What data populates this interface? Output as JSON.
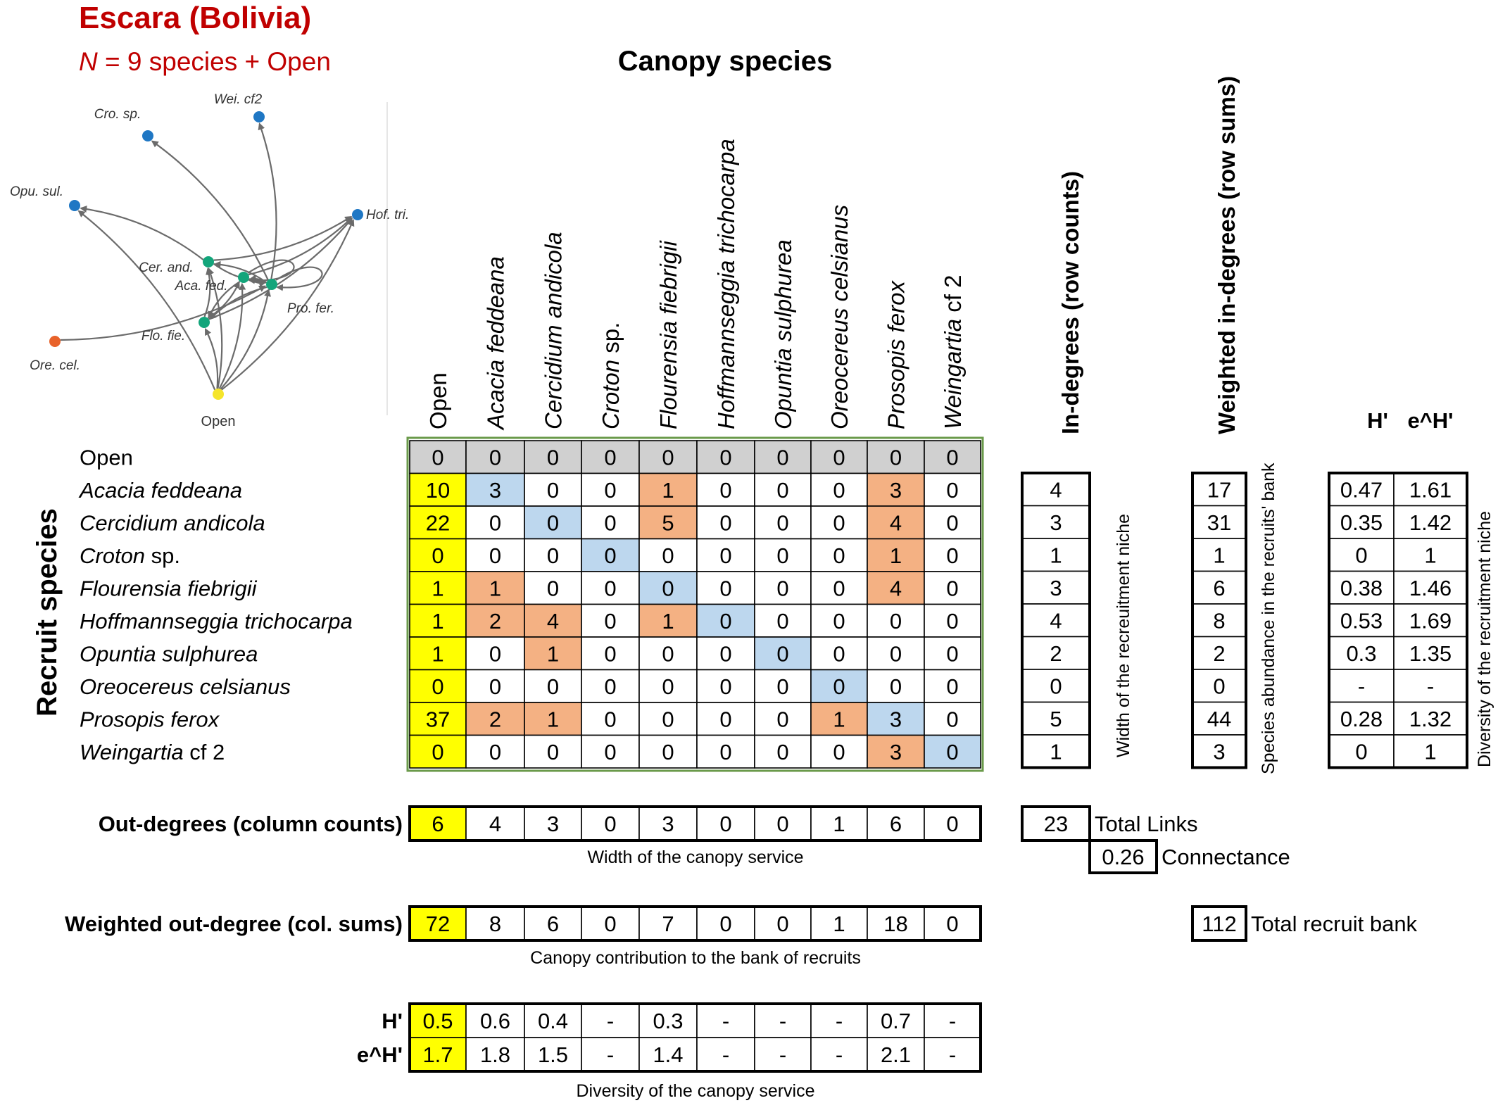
{
  "header": {
    "site_title": "Escara (Bolivia)",
    "n_symbol": "N",
    "n_text": " = 9 species + Open",
    "canopy_title": "Canopy species",
    "recruit_title": "Recruit species",
    "title_color": "#c00000"
  },
  "network": {
    "nodes": [
      {
        "id": "cro",
        "label": "Cro. sp.",
        "color": "#1f77c4"
      },
      {
        "id": "wei",
        "label": "Wei. cf2",
        "color": "#1f77c4"
      },
      {
        "id": "opu",
        "label": "Opu. sul.",
        "color": "#1f77c4"
      },
      {
        "id": "hof",
        "label": "Hof. tri.",
        "color": "#1f77c4"
      },
      {
        "id": "cer",
        "label": "Cer. and.",
        "color": "#13a57b"
      },
      {
        "id": "aca",
        "label": "Aca. fed.",
        "color": "#13a57b"
      },
      {
        "id": "pro",
        "label": "Pro. fer.",
        "color": "#13a57b"
      },
      {
        "id": "flo",
        "label": "Flo. fie.",
        "color": "#13a57b"
      },
      {
        "id": "ore",
        "label": "Ore. cel.",
        "color": "#e8622a"
      },
      {
        "id": "open",
        "label": "Open",
        "color": "#f5e52b"
      }
    ],
    "edges": [
      {
        "from": "open",
        "to": "aca"
      },
      {
        "from": "open",
        "to": "cer"
      },
      {
        "from": "open",
        "to": "flo"
      },
      {
        "from": "open",
        "to": "hof"
      },
      {
        "from": "open",
        "to": "opu"
      },
      {
        "from": "open",
        "to": "pro"
      },
      {
        "from": "aca",
        "to": "aca"
      },
      {
        "from": "aca",
        "to": "flo"
      },
      {
        "from": "aca",
        "to": "hof"
      },
      {
        "from": "aca",
        "to": "pro"
      },
      {
        "from": "cer",
        "to": "hof"
      },
      {
        "from": "cer",
        "to": "opu"
      },
      {
        "from": "cer",
        "to": "pro"
      },
      {
        "from": "flo",
        "to": "aca"
      },
      {
        "from": "flo",
        "to": "cer"
      },
      {
        "from": "flo",
        "to": "hof"
      },
      {
        "from": "pro",
        "to": "aca"
      },
      {
        "from": "pro",
        "to": "cer"
      },
      {
        "from": "pro",
        "to": "cro"
      },
      {
        "from": "pro",
        "to": "flo"
      },
      {
        "from": "pro",
        "to": "pro"
      },
      {
        "from": "pro",
        "to": "wei"
      },
      {
        "from": "ore",
        "to": "pro"
      }
    ]
  },
  "matrix": {
    "columns": [
      {
        "name": "Open",
        "italic": false
      },
      {
        "name": "Acacia feddeana",
        "italic": true
      },
      {
        "name": "Cercidium andicola",
        "italic": true
      },
      {
        "name": "Croton",
        "suffix": " sp.",
        "italic": true
      },
      {
        "name": "Flourensia fiebrigii",
        "italic": true
      },
      {
        "name": "Hoffmannseggia trichocarpa",
        "italic": true
      },
      {
        "name": "Opuntia sulphurea",
        "italic": true
      },
      {
        "name": "Oreocereus celsianus",
        "italic": true
      },
      {
        "name": "Prosopis ferox",
        "italic": true
      },
      {
        "name": "Weingartia",
        "suffix": " cf 2",
        "italic": true
      }
    ],
    "rows": [
      {
        "name": "Open",
        "italic": false,
        "values": [
          0,
          0,
          0,
          0,
          0,
          0,
          0,
          0,
          0,
          0
        ],
        "in_degree": null,
        "weighted_in_degree": null,
        "h": null,
        "eh": null
      },
      {
        "name": "Acacia feddeana",
        "italic": true,
        "values": [
          10,
          3,
          0,
          0,
          1,
          0,
          0,
          0,
          3,
          0
        ],
        "in_degree": 4,
        "weighted_in_degree": 17,
        "h": "0.47",
        "eh": "1.61"
      },
      {
        "name": "Cercidium andicola",
        "italic": true,
        "values": [
          22,
          0,
          0,
          0,
          5,
          0,
          0,
          0,
          4,
          0
        ],
        "in_degree": 3,
        "weighted_in_degree": 31,
        "h": "0.35",
        "eh": "1.42"
      },
      {
        "name": "Croton",
        "suffix": " sp.",
        "italic": true,
        "values": [
          0,
          0,
          0,
          0,
          0,
          0,
          0,
          0,
          1,
          0
        ],
        "in_degree": 1,
        "weighted_in_degree": 1,
        "h": "0",
        "eh": "1"
      },
      {
        "name": "Flourensia fiebrigii",
        "italic": true,
        "values": [
          1,
          1,
          0,
          0,
          0,
          0,
          0,
          0,
          4,
          0
        ],
        "in_degree": 3,
        "weighted_in_degree": 6,
        "h": "0.38",
        "eh": "1.46"
      },
      {
        "name": "Hoffmannseggia trichocarpa",
        "italic": true,
        "values": [
          1,
          2,
          4,
          0,
          1,
          0,
          0,
          0,
          0,
          0
        ],
        "in_degree": 4,
        "weighted_in_degree": 8,
        "h": "0.53",
        "eh": "1.69"
      },
      {
        "name": "Opuntia sulphurea",
        "italic": true,
        "values": [
          1,
          0,
          1,
          0,
          0,
          0,
          0,
          0,
          0,
          0
        ],
        "in_degree": 2,
        "weighted_in_degree": 2,
        "h": "0.3",
        "eh": "1.35"
      },
      {
        "name": "Oreocereus celsianus",
        "italic": true,
        "values": [
          0,
          0,
          0,
          0,
          0,
          0,
          0,
          0,
          0,
          0
        ],
        "in_degree": 0,
        "weighted_in_degree": 0,
        "h": "-",
        "eh": "-"
      },
      {
        "name": "Prosopis ferox",
        "italic": true,
        "values": [
          37,
          2,
          1,
          0,
          0,
          0,
          0,
          1,
          3,
          0
        ],
        "in_degree": 5,
        "weighted_in_degree": 44,
        "h": "0.28",
        "eh": "1.32"
      },
      {
        "name": "Weingartia",
        "suffix": " cf 2",
        "italic": true,
        "values": [
          0,
          0,
          0,
          0,
          0,
          0,
          0,
          0,
          3,
          0
        ],
        "in_degree": 1,
        "weighted_in_degree": 3,
        "h": "0",
        "eh": "1"
      }
    ],
    "colors": {
      "open_row": "#d0d0d0",
      "open_column": "#ffff00",
      "diagonal": "#bdd7ee",
      "link": "#f4b183",
      "frame": "#6a9a4a"
    }
  },
  "side_headers": {
    "in_degrees": "In-degrees (row counts)",
    "weighted_in_degrees": "Weighted in-degrees (row sums)",
    "h": "H'",
    "eh": "e^H'"
  },
  "side_notes": {
    "in_degrees": "Width of the recreuitment niche",
    "weighted_in_degrees": "Species abundance in the recruits' bank",
    "diversity": "Diversity of the recruitment niche"
  },
  "out_degrees": {
    "label": "Out-degrees (column counts)",
    "values": [
      6,
      4,
      3,
      0,
      3,
      0,
      0,
      1,
      6,
      0
    ],
    "caption": "Width of the canopy service"
  },
  "weighted_out_degrees": {
    "label": "Weighted out-degree (col. sums)",
    "values": [
      72,
      8,
      6,
      0,
      7,
      0,
      0,
      1,
      18,
      0
    ],
    "caption": "Canopy contribution to the bank of recruits"
  },
  "canopy_diversity": {
    "h_label": "H'",
    "eh_label": "e^H'",
    "h_values": [
      "0.5",
      "0.6",
      "0.4",
      "-",
      "0.3",
      "-",
      "-",
      "-",
      "0.7",
      "-"
    ],
    "eh_values": [
      "1.7",
      "1.8",
      "1.5",
      "-",
      "1.4",
      "-",
      "-",
      "-",
      "2.1",
      "-"
    ],
    "caption": "Diversity of the canopy service"
  },
  "totals": {
    "total_links_value": "23",
    "total_links_label": "Total Links",
    "connectance_value": "0.26",
    "connectance_label": "Connectance",
    "recruit_bank_value": "112",
    "recruit_bank_label": "Total recruit bank"
  }
}
